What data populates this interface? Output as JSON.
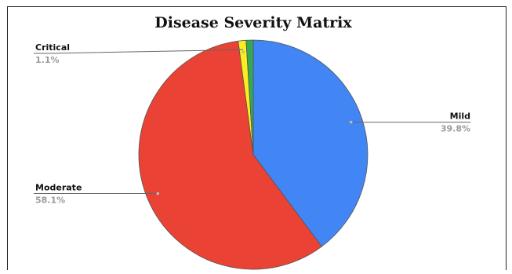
{
  "chart_data": {
    "type": "pie",
    "title": "Disease Severity Matrix",
    "slices": [
      {
        "label": "Mild",
        "percent": "39.8%",
        "value": 39.8,
        "color": "#4285f4"
      },
      {
        "label": "Moderate",
        "percent": "58.1%",
        "value": 58.1,
        "color": "#ea4335"
      },
      {
        "label": "Critical",
        "percent": "1.1%",
        "value": 1.1,
        "color": "#fbee1b"
      },
      {
        "label": "",
        "percent": "",
        "value": 1.0,
        "color": "#34a853"
      }
    ]
  }
}
